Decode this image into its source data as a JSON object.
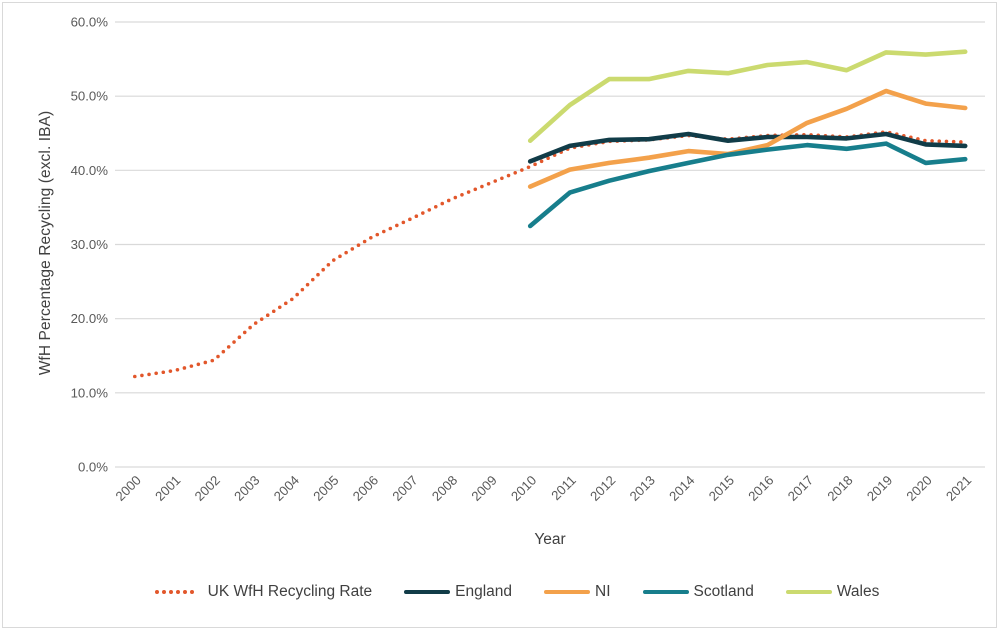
{
  "frame": {
    "background": "#FFFFFF",
    "border_color": "#D9D9D9"
  },
  "axis": {
    "tick_label_color": "#595959",
    "title_color": "#404040",
    "gridline_color": "#D9D9D9"
  },
  "chart_data": {
    "type": "line",
    "title": "",
    "xlabel": "Year",
    "ylabel": "WfH Percentage Recycling (excl. IBA)",
    "x": [
      2000,
      2001,
      2002,
      2003,
      2004,
      2005,
      2006,
      2007,
      2008,
      2009,
      2010,
      2011,
      2012,
      2013,
      2014,
      2015,
      2016,
      2017,
      2018,
      2019,
      2020,
      2021
    ],
    "ylim": [
      0,
      60
    ],
    "y_tick_step": 10,
    "y_tick_labels": [
      "0.0%",
      "10.0%",
      "20.0%",
      "30.0%",
      "40.0%",
      "50.0%",
      "60.0%"
    ],
    "grid": "horizontal",
    "legend_position": "bottom",
    "series": [
      {
        "name": "UK WfH Recycling Rate",
        "color": "#E2572B",
        "style": "dotted",
        "start_year": 2000,
        "values": [
          12.2,
          13.0,
          14.4,
          19.2,
          22.7,
          27.8,
          31.0,
          33.5,
          36.1,
          38.3,
          40.5,
          43.0,
          43.9,
          44.1,
          44.7,
          44.2,
          44.7,
          44.8,
          44.5,
          45.2,
          44.0,
          43.8
        ]
      },
      {
        "name": "England",
        "color": "#113C48",
        "style": "solid",
        "start_year": 2010,
        "values": [
          41.2,
          43.3,
          44.1,
          44.2,
          44.9,
          44.0,
          44.5,
          44.5,
          44.3,
          44.9,
          43.5,
          43.3
        ]
      },
      {
        "name": "NI",
        "color": "#F3A14B",
        "style": "solid",
        "start_year": 2010,
        "values": [
          37.8,
          40.1,
          41.0,
          41.7,
          42.6,
          42.2,
          43.4,
          46.4,
          48.3,
          50.7,
          49.0,
          48.4
        ]
      },
      {
        "name": "Scotland",
        "color": "#177E8C",
        "style": "solid",
        "start_year": 2010,
        "values": [
          32.5,
          37.0,
          38.6,
          39.9,
          41.0,
          42.1,
          42.8,
          43.4,
          42.9,
          43.6,
          41.0,
          41.5
        ]
      },
      {
        "name": "Wales",
        "color": "#CBDA6F",
        "style": "solid",
        "start_year": 2010,
        "values": [
          44.0,
          48.8,
          52.3,
          52.3,
          53.4,
          53.1,
          54.2,
          54.6,
          53.5,
          55.9,
          55.6,
          56.0
        ]
      }
    ]
  }
}
